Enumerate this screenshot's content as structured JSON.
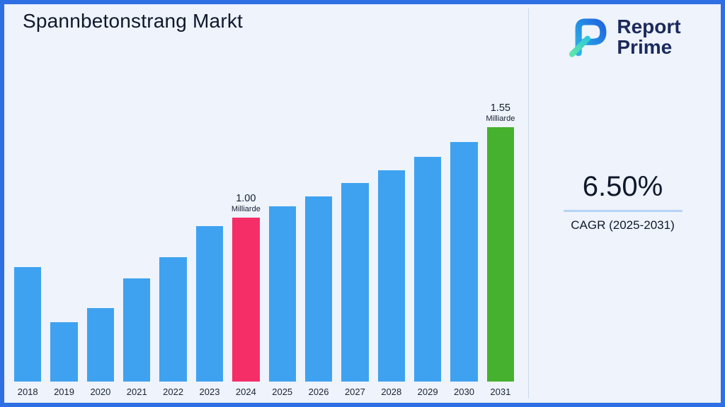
{
  "page": {
    "title": "Spannbetonstrang Markt",
    "background": "#eef3fc",
    "border_color": "#2e6fe4"
  },
  "logo": {
    "line1": "Report",
    "line2": "Prime",
    "text_color": "#1b2a5c",
    "glyph_blue": "#1f7ae8",
    "glyph_teal": "#3fd6b3"
  },
  "stats": {
    "cagr_value": "6.50%",
    "cagr_label": "CAGR (2025-2031)"
  },
  "chart_data": {
    "type": "bar",
    "title": "Spannbetonstrang Markt",
    "unit": "Milliarde",
    "categories": [
      "2018",
      "2019",
      "2020",
      "2021",
      "2022",
      "2023",
      "2024",
      "2025",
      "2026",
      "2027",
      "2028",
      "2029",
      "2030",
      "2031"
    ],
    "values": [
      0.7,
      0.36,
      0.45,
      0.63,
      0.76,
      0.95,
      1.0,
      1.07,
      1.13,
      1.21,
      1.29,
      1.37,
      1.46,
      1.55
    ],
    "ylim": [
      0,
      1.7
    ],
    "grid": false,
    "legend": "none",
    "bar_colors": {
      "default": "#3ea2f0",
      "2024": "#f62e67",
      "2031": "#46b12e"
    },
    "annotations": [
      {
        "category": "2024",
        "value_label": "1.00",
        "unit_label": "Milliarde"
      },
      {
        "category": "2031",
        "value_label": "1.55",
        "unit_label": "Milliarde"
      }
    ]
  }
}
